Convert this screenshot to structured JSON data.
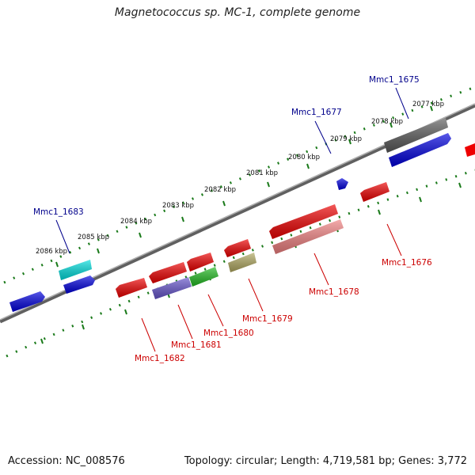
{
  "title": "Magnetococcus sp. MC-1, complete genome",
  "footer": {
    "accession": "Accession: NC_008576",
    "summary": "Topology: circular; Length: 4,719,581 bp; Genes: 3,772"
  },
  "colors": {
    "backbone": "#808080",
    "tick_track": "#1a7a1a",
    "forward_label": "#00008b",
    "reverse_label": "#cc0000"
  },
  "ticks": [
    "2077 kbp",
    "2078 kbp",
    "2079 kbp",
    "2080 kbp",
    "2081 kbp",
    "2082 kbp",
    "2083 kbp",
    "2084 kbp",
    "2085 kbp",
    "2086 kbp"
  ],
  "genes_forward": [
    {
      "label": "Mmc1_1675",
      "color": "#5a5a5a"
    },
    {
      "label": "Mmc1_1677",
      "color": "#0000dd"
    },
    {
      "label": "Mmc1_1683",
      "color": "#00dddd"
    }
  ],
  "genes_reverse": [
    {
      "label": "Mmc1_1676",
      "color": "#ee0000"
    },
    {
      "label": "Mmc1_1678",
      "color": "#ee0000"
    },
    {
      "label": "Mmc1_1679",
      "color": "#ee0000"
    },
    {
      "label": "Mmc1_1680",
      "color": "#22bb22"
    },
    {
      "label": "Mmc1_1681",
      "color": "#6655cc"
    },
    {
      "label": "Mmc1_1682",
      "color": "#ee0000"
    }
  ]
}
